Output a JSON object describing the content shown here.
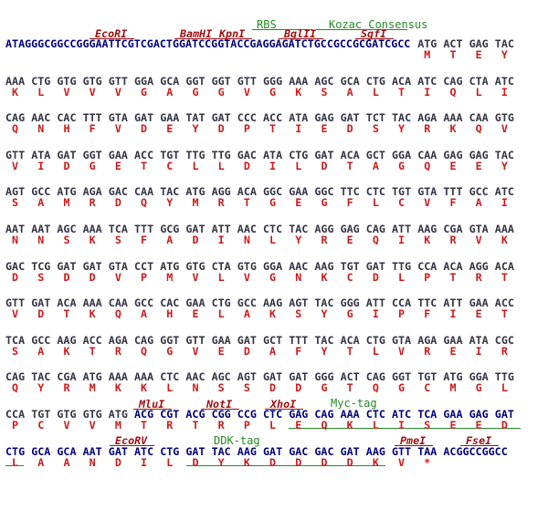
{
  "annotations": [
    "EcoRI",
    "BamHI",
    "KpnI",
    "RBS",
    "BglII",
    "Kozac Consensus",
    "SgfI",
    "MluI",
    "NotI",
    "XhoI",
    "Myc-tag",
    "EcoRV",
    "DDK-tag",
    "PmeI",
    "FseI"
  ],
  "lines": [
    {
      "lead": "ATAGGGCGGCCGGGAATTCGTCGACTGGATCCGGTACCGAGGAGATCTGCCGCCGCGATCGCC",
      "codons": [
        "ATG",
        "ACT",
        "GAG",
        "TAC"
      ],
      "protein": [
        "M",
        "T",
        "E",
        "Y"
      ]
    },
    {
      "codons": [
        "AAA",
        "CTG",
        "GTG",
        "GTG",
        "GTT",
        "GGA",
        "GCA",
        "GGT",
        "GGT",
        "GTT",
        "GGG",
        "AAA",
        "AGC",
        "GCA",
        "CTG",
        "ACA",
        "ATC",
        "CAG",
        "CTA",
        "ATC"
      ],
      "protein": [
        "K",
        "L",
        "V",
        "V",
        "V",
        "G",
        "A",
        "G",
        "G",
        "V",
        "G",
        "K",
        "S",
        "A",
        "L",
        "T",
        "I",
        "Q",
        "L",
        "I"
      ]
    },
    {
      "codons": [
        "CAG",
        "AAC",
        "CAC",
        "TTT",
        "GTA",
        "GAT",
        "GAA",
        "TAT",
        "GAT",
        "CCC",
        "ACC",
        "ATA",
        "GAG",
        "GAT",
        "TCT",
        "TAC",
        "AGA",
        "AAA",
        "CAA",
        "GTG"
      ],
      "protein": [
        "Q",
        "N",
        "H",
        "F",
        "V",
        "D",
        "E",
        "Y",
        "D",
        "P",
        "T",
        "I",
        "E",
        "D",
        "S",
        "Y",
        "R",
        "K",
        "Q",
        "V"
      ]
    },
    {
      "codons": [
        "GTT",
        "ATA",
        "GAT",
        "GGT",
        "GAA",
        "ACC",
        "TGT",
        "TTG",
        "TTG",
        "GAC",
        "ATA",
        "CTG",
        "GAT",
        "ACA",
        "GCT",
        "GGA",
        "CAA",
        "GAG",
        "GAG",
        "TAC"
      ],
      "protein": [
        "V",
        "I",
        "D",
        "G",
        "E",
        "T",
        "C",
        "L",
        "L",
        "D",
        "I",
        "L",
        "D",
        "T",
        "A",
        "G",
        "Q",
        "E",
        "E",
        "Y"
      ]
    },
    {
      "codons": [
        "AGT",
        "GCC",
        "ATG",
        "AGA",
        "GAC",
        "CAA",
        "TAC",
        "ATG",
        "AGG",
        "ACA",
        "GGC",
        "GAA",
        "GGC",
        "TTC",
        "CTC",
        "TGT",
        "GTA",
        "TTT",
        "GCC",
        "ATC"
      ],
      "protein": [
        "S",
        "A",
        "M",
        "R",
        "D",
        "Q",
        "Y",
        "M",
        "R",
        "T",
        "G",
        "E",
        "G",
        "F",
        "L",
        "C",
        "V",
        "F",
        "A",
        "I"
      ]
    },
    {
      "codons": [
        "AAT",
        "AAT",
        "AGC",
        "AAA",
        "TCA",
        "TTT",
        "GCG",
        "GAT",
        "ATT",
        "AAC",
        "CTC",
        "TAC",
        "AGG",
        "GAG",
        "CAG",
        "ATT",
        "AAG",
        "CGA",
        "GTA",
        "AAA"
      ],
      "protein": [
        "N",
        "N",
        "S",
        "K",
        "S",
        "F",
        "A",
        "D",
        "I",
        "N",
        "L",
        "Y",
        "R",
        "E",
        "Q",
        "I",
        "K",
        "R",
        "V",
        "K"
      ]
    },
    {
      "codons": [
        "GAC",
        "TCG",
        "GAT",
        "GAT",
        "GTA",
        "CCT",
        "ATG",
        "GTG",
        "CTA",
        "GTG",
        "GGA",
        "AAC",
        "AAG",
        "TGT",
        "GAT",
        "TTG",
        "CCA",
        "ACA",
        "AGG",
        "ACA"
      ],
      "protein": [
        "D",
        "S",
        "D",
        "D",
        "V",
        "P",
        "M",
        "V",
        "L",
        "V",
        "G",
        "N",
        "K",
        "C",
        "D",
        "L",
        "P",
        "T",
        "R",
        "T"
      ]
    },
    {
      "codons": [
        "GTT",
        "GAT",
        "ACA",
        "AAA",
        "CAA",
        "GCC",
        "CAC",
        "GAA",
        "CTG",
        "GCC",
        "AAG",
        "AGT",
        "TAC",
        "GGG",
        "ATT",
        "CCA",
        "TTC",
        "ATT",
        "GAA",
        "ACC"
      ],
      "protein": [
        "V",
        "D",
        "T",
        "K",
        "Q",
        "A",
        "H",
        "E",
        "L",
        "A",
        "K",
        "S",
        "Y",
        "G",
        "I",
        "P",
        "F",
        "I",
        "E",
        "T"
      ]
    },
    {
      "codons": [
        "TCA",
        "GCC",
        "AAG",
        "ACC",
        "AGA",
        "CAG",
        "GGT",
        "GTT",
        "GAA",
        "GAT",
        "GCT",
        "TTT",
        "TAC",
        "ACA",
        "CTG",
        "GTA",
        "AGA",
        "GAA",
        "ATA",
        "CGC"
      ],
      "protein": [
        "S",
        "A",
        "K",
        "T",
        "R",
        "Q",
        "G",
        "V",
        "E",
        "D",
        "A",
        "F",
        "Y",
        "T",
        "L",
        "V",
        "R",
        "E",
        "I",
        "R"
      ]
    },
    {
      "codons": [
        "CAG",
        "TAC",
        "CGA",
        "ATG",
        "AAA",
        "AAA",
        "CTC",
        "AAC",
        "AGC",
        "AGT",
        "GAT",
        "GAT",
        "GGG",
        "ACT",
        "CAG",
        "GGT",
        "TGT",
        "ATG",
        "GGA",
        "TTG"
      ],
      "protein": [
        "Q",
        "Y",
        "R",
        "M",
        "K",
        "K",
        "L",
        "N",
        "S",
        "S",
        "D",
        "D",
        "G",
        "T",
        "Q",
        "G",
        "C",
        "M",
        "G",
        "L"
      ]
    },
    {
      "codons": [
        "CCA",
        "TGT",
        "GTG",
        "GTG",
        "ATG",
        "ACG",
        "CGT",
        "ACG",
        "CGG",
        "CCG",
        "CTC",
        "GAG",
        "CAG",
        "AAA",
        "CTC",
        "ATC",
        "TCA",
        "GAA",
        "GAG",
        "GAT"
      ],
      "protein": [
        "P",
        "C",
        "V",
        "V",
        "M",
        "T",
        "R",
        "T",
        "R",
        "P",
        "L",
        "E",
        "Q",
        "K",
        "L",
        "I",
        "S",
        "E",
        "E",
        "D"
      ]
    },
    {
      "codons": [
        "CTG",
        "GCA",
        "GCA",
        "AAT",
        "GAT",
        "ATC",
        "CTG",
        "GAT",
        "TAC",
        "AAG",
        "GAT",
        "GAC",
        "GAC",
        "GAT",
        "AAG",
        "GTT",
        "TAA"
      ],
      "protein": [
        "L",
        "A",
        "A",
        "N",
        "D",
        "I",
        "L",
        "D",
        "Y",
        "K",
        "D",
        "D",
        "D",
        "D",
        "K",
        "V",
        "*"
      ],
      "tail": "ACGGCCGGCC"
    }
  ]
}
